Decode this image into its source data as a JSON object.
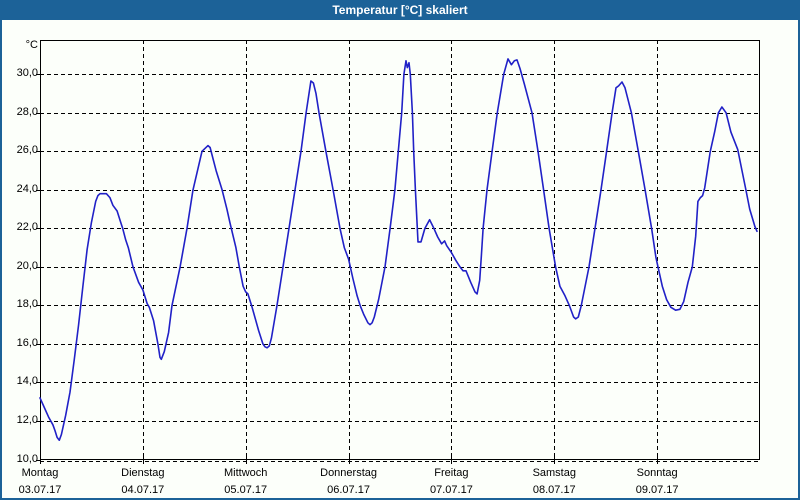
{
  "window": {
    "title": "Temperatur [°C] skaliert",
    "colors": {
      "title_bar": "#1c6298",
      "window_border": "#1c6298",
      "background": "#fcfffa",
      "line": "#2121c7",
      "grid": "#000000",
      "text": "#000000"
    }
  },
  "chart_data": {
    "type": "line",
    "title": "Temperatur [°C] skaliert",
    "ylabel": "°C",
    "xlabel": "",
    "ylim": [
      10,
      31.8
    ],
    "grid": "dashed",
    "legend": "none",
    "y_ticks": [
      {
        "value": 10,
        "label": "10,0"
      },
      {
        "value": 12,
        "label": "12,0"
      },
      {
        "value": 14,
        "label": "14,0"
      },
      {
        "value": 16,
        "label": "16,0"
      },
      {
        "value": 18,
        "label": "18,0"
      },
      {
        "value": 20,
        "label": "20,0"
      },
      {
        "value": 22,
        "label": "22,0"
      },
      {
        "value": 24,
        "label": "24,0"
      },
      {
        "value": 26,
        "label": "26,0"
      },
      {
        "value": 28,
        "label": "28,0"
      },
      {
        "value": 30,
        "label": "30,0"
      }
    ],
    "x_categories": [
      {
        "day": "Montag",
        "date": "03.07.17"
      },
      {
        "day": "Dienstag",
        "date": "04.07.17"
      },
      {
        "day": "Mittwoch",
        "date": "05.07.17"
      },
      {
        "day": "Donnerstag",
        "date": "06.07.17"
      },
      {
        "day": "Freitag",
        "date": "07.07.17"
      },
      {
        "day": "Samstag",
        "date": "08.07.17"
      },
      {
        "day": "Sonntag",
        "date": "09.07.17"
      }
    ],
    "x_range_hours": [
      0,
      168
    ],
    "series": [
      {
        "name": "Temperatur [°C]",
        "color": "#2121c7",
        "points": [
          [
            0,
            13.2
          ],
          [
            1,
            12.7
          ],
          [
            2,
            12.2
          ],
          [
            3,
            11.8
          ],
          [
            3.5,
            11.5
          ],
          [
            4,
            11.15
          ],
          [
            4.5,
            11.0
          ],
          [
            5,
            11.3
          ],
          [
            6,
            12.3
          ],
          [
            7,
            13.5
          ],
          [
            8,
            15.2
          ],
          [
            9,
            17.0
          ],
          [
            10,
            19.0
          ],
          [
            11,
            20.9
          ],
          [
            12,
            22.3
          ],
          [
            13,
            23.4
          ],
          [
            13.5,
            23.7
          ],
          [
            14,
            23.8
          ],
          [
            15.5,
            23.8
          ],
          [
            16.3,
            23.6
          ],
          [
            17,
            23.2
          ],
          [
            18,
            22.9
          ],
          [
            19,
            22.2
          ],
          [
            19.3,
            22.0
          ],
          [
            20,
            21.4
          ],
          [
            20.6,
            21.0
          ],
          [
            21.7,
            20.0
          ],
          [
            23,
            19.2
          ],
          [
            24,
            18.8
          ],
          [
            25,
            18.1
          ],
          [
            25.5,
            17.9
          ],
          [
            26.5,
            17.2
          ],
          [
            27.5,
            16.0
          ],
          [
            28,
            15.3
          ],
          [
            28.3,
            15.2
          ],
          [
            29,
            15.6
          ],
          [
            30,
            16.6
          ],
          [
            30.8,
            18.0
          ],
          [
            32.7,
            20.0
          ],
          [
            34.3,
            22.0
          ],
          [
            35.7,
            24.0
          ],
          [
            37.8,
            26.0
          ],
          [
            39.2,
            26.3
          ],
          [
            39.7,
            26.2
          ],
          [
            41.1,
            25.0
          ],
          [
            42.5,
            24.0
          ],
          [
            43.6,
            23.0
          ],
          [
            44.3,
            22.3
          ],
          [
            45.7,
            21.0
          ],
          [
            46.5,
            20.0
          ],
          [
            47.4,
            19.0
          ],
          [
            48,
            18.7
          ],
          [
            48.5,
            18.6
          ],
          [
            49.5,
            17.9
          ],
          [
            51,
            16.7
          ],
          [
            52,
            16.0
          ],
          [
            52.5,
            15.85
          ],
          [
            53,
            15.8
          ],
          [
            53.5,
            15.9
          ],
          [
            54,
            16.3
          ],
          [
            55.3,
            18.0
          ],
          [
            56.7,
            20.0
          ],
          [
            58.1,
            22.0
          ],
          [
            59.5,
            24.0
          ],
          [
            60.9,
            26.0
          ],
          [
            62.1,
            28.0
          ],
          [
            63.2,
            29.65
          ],
          [
            63.8,
            29.55
          ],
          [
            64.4,
            29.0
          ],
          [
            65.1,
            28.0
          ],
          [
            66.7,
            26.0
          ],
          [
            68.4,
            24.0
          ],
          [
            70,
            22.0
          ],
          [
            71,
            21.0
          ],
          [
            72,
            20.4
          ],
          [
            73,
            19.4
          ],
          [
            74,
            18.5
          ],
          [
            74.7,
            18.0
          ],
          [
            75.5,
            17.55
          ],
          [
            76.5,
            17.1
          ],
          [
            77,
            17.0
          ],
          [
            77.5,
            17.1
          ],
          [
            78,
            17.4
          ],
          [
            79,
            18.3
          ],
          [
            80.5,
            20.0
          ],
          [
            81.7,
            22.0
          ],
          [
            82.8,
            24.0
          ],
          [
            83.6,
            26.0
          ],
          [
            84.4,
            28.0
          ],
          [
            84.9,
            30.0
          ],
          [
            85.4,
            30.7
          ],
          [
            85.7,
            30.35
          ],
          [
            86.1,
            30.6
          ],
          [
            86.4,
            30.0
          ],
          [
            86.9,
            28.0
          ],
          [
            87.2,
            26.0
          ],
          [
            87.6,
            24.0
          ],
          [
            88.2,
            21.3
          ],
          [
            88.9,
            21.3
          ],
          [
            89.8,
            22.0
          ],
          [
            90.9,
            22.45
          ],
          [
            91.9,
            22.0
          ],
          [
            92.8,
            21.55
          ],
          [
            93.7,
            21.2
          ],
          [
            94.4,
            21.35
          ],
          [
            94.9,
            21.1
          ],
          [
            96,
            20.75
          ],
          [
            97,
            20.35
          ],
          [
            98,
            20.0
          ],
          [
            98.7,
            19.8
          ],
          [
            99.4,
            19.8
          ],
          [
            100.5,
            19.2
          ],
          [
            101.5,
            18.7
          ],
          [
            102,
            18.6
          ],
          [
            102.6,
            19.3
          ],
          [
            103,
            20.6
          ],
          [
            103.4,
            22.0
          ],
          [
            104.3,
            24.0
          ],
          [
            105.5,
            26.0
          ],
          [
            106.7,
            28.0
          ],
          [
            108.2,
            30.0
          ],
          [
            109.2,
            30.8
          ],
          [
            110,
            30.5
          ],
          [
            110.7,
            30.7
          ],
          [
            111.3,
            30.75
          ],
          [
            112,
            30.3
          ],
          [
            113,
            29.5
          ],
          [
            114.8,
            28.0
          ],
          [
            116.2,
            26.0
          ],
          [
            117.5,
            24.0
          ],
          [
            118.8,
            22.0
          ],
          [
            120.3,
            20.0
          ],
          [
            121.3,
            19.0
          ],
          [
            122.5,
            18.5
          ],
          [
            123.5,
            18.0
          ],
          [
            124.5,
            17.4
          ],
          [
            125,
            17.3
          ],
          [
            125.6,
            17.4
          ],
          [
            126.3,
            18.0
          ],
          [
            128.1,
            20.0
          ],
          [
            129.5,
            22.0
          ],
          [
            130.9,
            24.0
          ],
          [
            132.2,
            26.0
          ],
          [
            133.5,
            28.0
          ],
          [
            134.4,
            29.3
          ],
          [
            135,
            29.4
          ],
          [
            135.8,
            29.6
          ],
          [
            136.5,
            29.3
          ],
          [
            138,
            28.0
          ],
          [
            139.6,
            26.0
          ],
          [
            141.2,
            24.0
          ],
          [
            142.7,
            22.0
          ],
          [
            143.7,
            20.5
          ],
          [
            144.2,
            20.0
          ],
          [
            145.2,
            19.0
          ],
          [
            146.2,
            18.3
          ],
          [
            147.2,
            17.9
          ],
          [
            148.3,
            17.75
          ],
          [
            149.3,
            17.8
          ],
          [
            150.2,
            18.2
          ],
          [
            151.2,
            19.2
          ],
          [
            152.2,
            20.0
          ],
          [
            153,
            21.6
          ],
          [
            153.5,
            23.4
          ],
          [
            154.1,
            23.6
          ],
          [
            154.6,
            23.7
          ],
          [
            155.1,
            24.1
          ],
          [
            156.4,
            26.0
          ],
          [
            157.4,
            27.0
          ],
          [
            158.3,
            28.0
          ],
          [
            159.1,
            28.3
          ],
          [
            160.1,
            28.0
          ],
          [
            161.2,
            27.0
          ],
          [
            162.8,
            26.1
          ],
          [
            163.8,
            25.0
          ],
          [
            164.7,
            24.0
          ],
          [
            165.6,
            23.0
          ],
          [
            166.8,
            22.1
          ],
          [
            167.3,
            21.85
          ]
        ]
      }
    ]
  }
}
